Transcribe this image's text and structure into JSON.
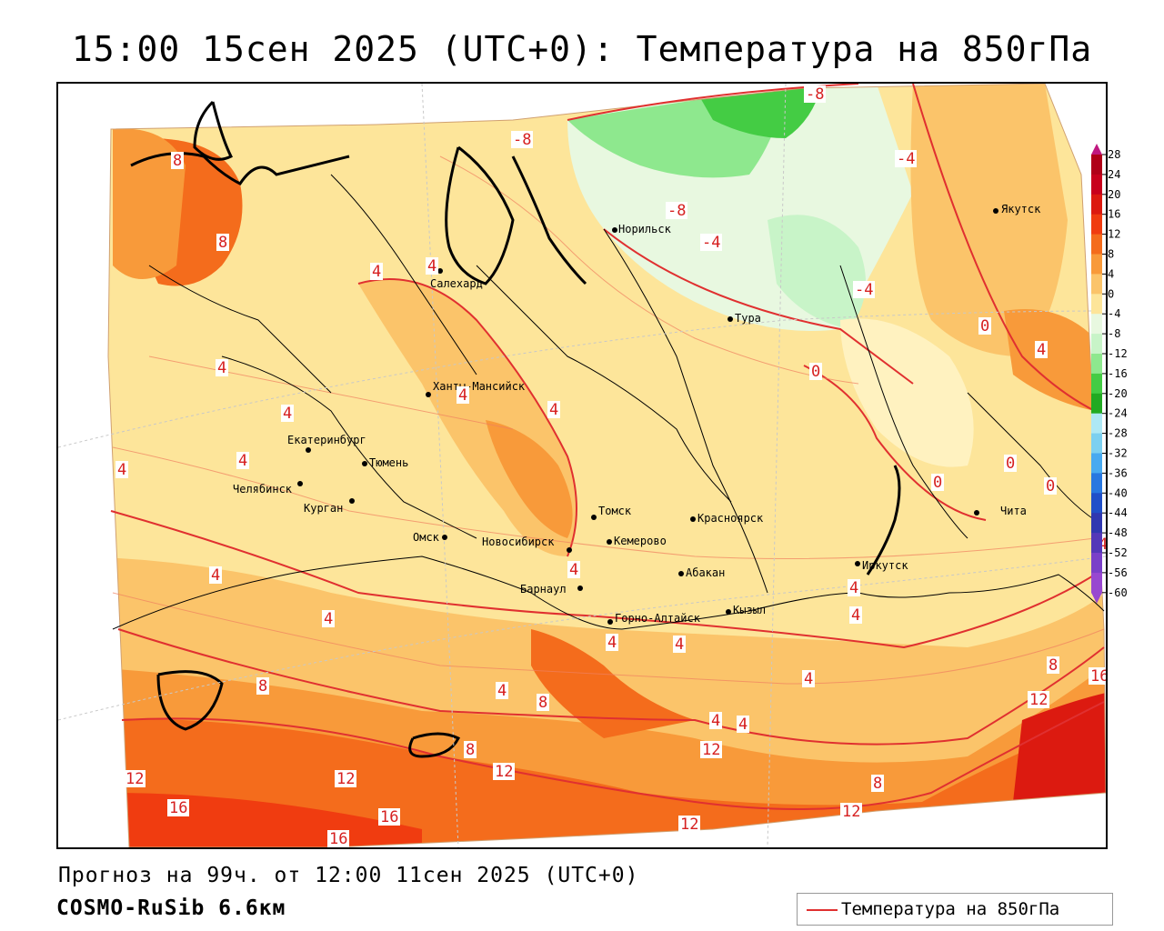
{
  "title": "15:00 15сен 2025 (UTC+0): Температура на 850гПа",
  "footer": {
    "forecast": "Прогноз на 99ч. от 12:00 11сен 2025 (UTC+0)",
    "model": "COSMO-RuSib 6.6км"
  },
  "legend": {
    "label": "Температура на 850гПа",
    "line_color": "#e03030"
  },
  "cities": [
    {
      "name": "Салехард"
    },
    {
      "name": "Норильск"
    },
    {
      "name": "Якутск"
    },
    {
      "name": "Тура"
    },
    {
      "name": "Ханты-Мансийск"
    },
    {
      "name": "Екатеринбург"
    },
    {
      "name": "Тюмень"
    },
    {
      "name": "Челябинск"
    },
    {
      "name": "Курган"
    },
    {
      "name": "Омск"
    },
    {
      "name": "Новосибирск"
    },
    {
      "name": "Томск"
    },
    {
      "name": "Кемерово"
    },
    {
      "name": "Красноярск"
    },
    {
      "name": "Барнаул"
    },
    {
      "name": "Абакан"
    },
    {
      "name": "Горно-Алтайск"
    },
    {
      "name": "Кызыл"
    },
    {
      "name": "Иркутск"
    },
    {
      "name": "Чита"
    }
  ],
  "contour_labels": [
    "-8",
    "-8",
    "-8",
    "-4",
    "-4",
    "-4",
    "8",
    "8",
    "4",
    "4",
    "4",
    "4",
    "4",
    "4",
    "4",
    "4",
    "4",
    "4",
    "0",
    "0",
    "0",
    "0",
    "0",
    "4",
    "4",
    "4",
    "4",
    "4",
    "4",
    "4",
    "4",
    "4",
    "8",
    "8",
    "8",
    "8",
    "8",
    "12",
    "12",
    "12",
    "12",
    "12",
    "12",
    "12",
    "16",
    "16",
    "16",
    "16",
    "4",
    "4"
  ],
  "scale": {
    "ticks": [
      "28",
      "24",
      "20",
      "16",
      "12",
      "8",
      "4",
      "0",
      "-4",
      "-8",
      "-12",
      "-16",
      "-20",
      "-24",
      "-28",
      "-32",
      "-36",
      "-40",
      "-44",
      "-48",
      "-52",
      "-56",
      "-60"
    ],
    "colors": [
      "#b00018",
      "#c8001c",
      "#dc1a10",
      "#f03c10",
      "#f46c1c",
      "#f89a3a",
      "#fbc46a",
      "#fde59a",
      "#e8f8e0",
      "#c8f4c8",
      "#8ee88e",
      "#44cc44",
      "#22aa22",
      "#aee8f4",
      "#7cd0f0",
      "#48aaf0",
      "#2878e0",
      "#2050c8",
      "#3038b0",
      "#5438b8",
      "#7a40c8",
      "#9848d0"
    ]
  }
}
